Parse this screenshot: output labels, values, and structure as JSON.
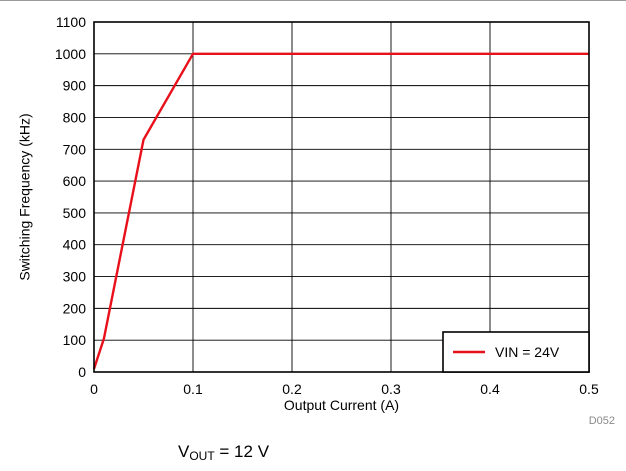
{
  "chart_data": {
    "type": "line",
    "xlabel": "Output Current (A)",
    "ylabel": "Switching Frequency (kHz)",
    "xlim": [
      0,
      0.5
    ],
    "ylim": [
      0,
      1100
    ],
    "x_ticks": [
      0,
      0.1,
      0.2,
      0.3,
      0.4,
      0.5
    ],
    "x_tick_labels": [
      "0",
      "0.1",
      "0.2",
      "0.3",
      "0.4",
      "0.5"
    ],
    "y_ticks": [
      0,
      100,
      200,
      300,
      400,
      500,
      600,
      700,
      800,
      900,
      1000,
      1100
    ],
    "y_tick_labels": [
      "0",
      "100",
      "200",
      "300",
      "400",
      "500",
      "600",
      "700",
      "800",
      "900",
      "1000",
      "1100"
    ],
    "grid": true,
    "legend_position": "bottom-right",
    "series": [
      {
        "name": "VIN = 24V",
        "color": "#e8101a",
        "x": [
          0,
          0.01,
          0.05,
          0.1,
          0.5
        ],
        "y": [
          10,
          105,
          730,
          1000,
          1000
        ]
      }
    ],
    "figure_code": "D052"
  },
  "caption": {
    "v_main": "V",
    "v_sub": "OUT",
    "v_rest": " = 12 V"
  }
}
